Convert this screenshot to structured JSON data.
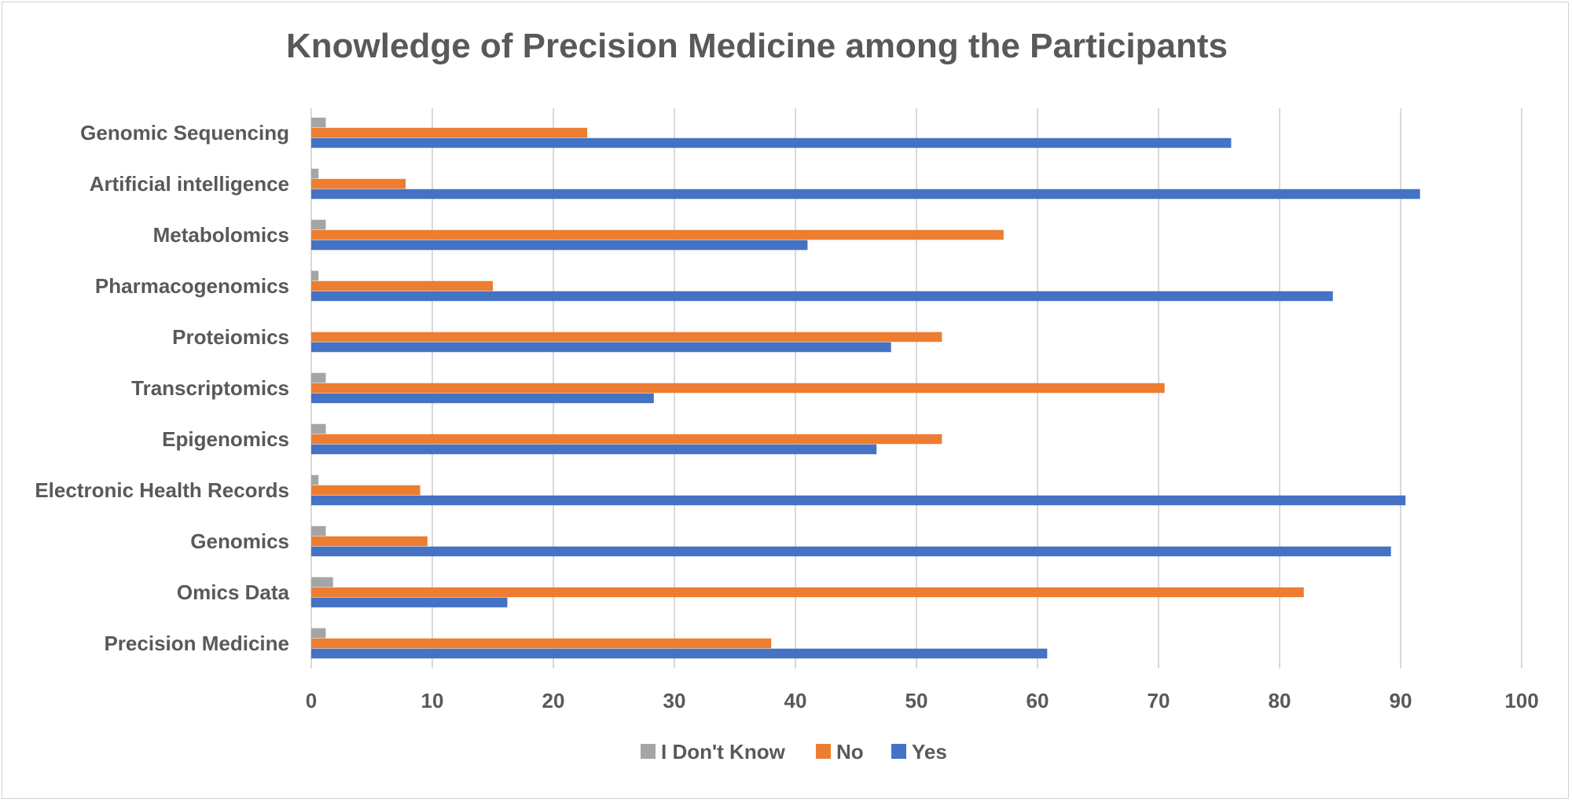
{
  "chart_data": {
    "type": "bar",
    "orientation": "horizontal",
    "title": "Knowledge of Precision Medicine among the Participants",
    "xlabel": "",
    "ylabel": "",
    "xlim": [
      0,
      100
    ],
    "x_ticks": [
      0,
      10,
      20,
      30,
      40,
      50,
      60,
      70,
      80,
      90,
      100
    ],
    "grid": true,
    "legend_position": "bottom",
    "categories": [
      "Genomic Sequencing",
      "Artificial intelligence",
      "Metabolomics",
      "Pharmacogenomics",
      "Proteiomics",
      "Transcriptomics",
      "Epigenomics",
      "Electronic Health Records",
      "Genomics",
      "Omics Data",
      "Precision Medicine"
    ],
    "series": [
      {
        "name": "I Don't Know",
        "color": "#a5a5a5",
        "values": [
          1.2,
          0.6,
          1.2,
          0.6,
          0,
          1.2,
          1.2,
          0.6,
          1.2,
          1.8,
          1.2
        ]
      },
      {
        "name": "No",
        "color": "#ed7d31",
        "values": [
          22.8,
          7.8,
          57.2,
          15.0,
          52.1,
          70.5,
          52.1,
          9.0,
          9.6,
          82.0,
          38.0
        ]
      },
      {
        "name": "Yes",
        "color": "#4472c4",
        "values": [
          76.0,
          91.6,
          41.0,
          84.4,
          47.9,
          28.3,
          46.7,
          90.4,
          89.2,
          16.2,
          60.8
        ]
      }
    ]
  }
}
